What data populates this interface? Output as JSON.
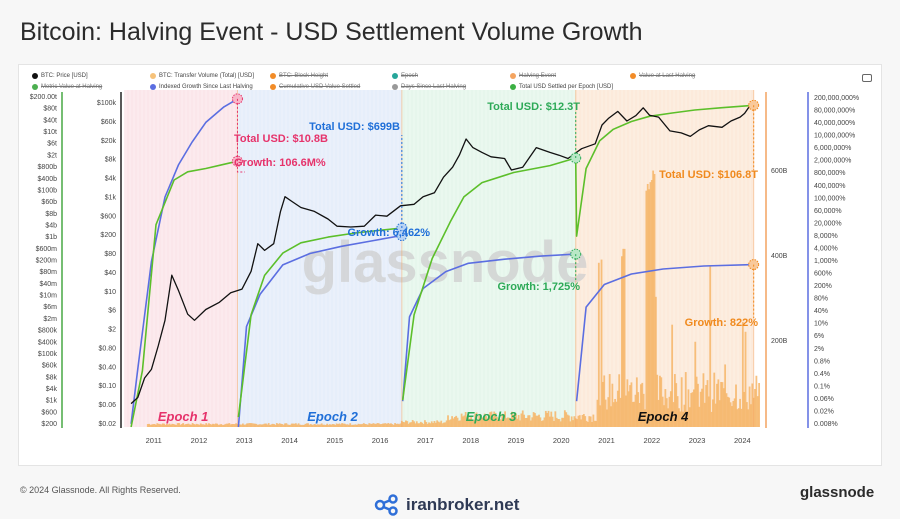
{
  "title": "Bitcoin: Halving Event - USD Settlement Volume Growth",
  "footer": {
    "copyright": "© 2024 Glassnode. All Rights Reserved.",
    "watermark": "iranbroker.net",
    "brand": "glassnode"
  },
  "legend": [
    {
      "label": "BTC: Price [USD]",
      "color": "#111111",
      "struck": false
    },
    {
      "label": "BTC: Transfer Volume (Total) [USD]",
      "color": "#f6c27a",
      "struck": false
    },
    {
      "label": "BTC: Block Height",
      "color": "#f28c28",
      "struck": true
    },
    {
      "label": "Epoch",
      "color": "#26a69a",
      "struck": true
    },
    {
      "label": "Halving Event",
      "color": "#f4a460",
      "struck": true
    },
    {
      "label": "Value at Last Halving",
      "color": "#f28c28",
      "struck": true
    },
    {
      "label": "Metric Value at Halving",
      "color": "#4caf50",
      "struck": true
    },
    {
      "label": "Indexed Growth Since Last Halving",
      "color": "#5b6ee1",
      "struck": false
    },
    {
      "label": "Cumulative USD Value Settled",
      "color": "#f28c28",
      "struck": true
    },
    {
      "label": "Days Since Last Halving",
      "color": "#999999",
      "struck": true
    },
    {
      "label": "Total USD Settled per Epoch [USD]",
      "color": "#3cb043",
      "struck": false
    }
  ],
  "colors": {
    "epoch1": "#f9dde3",
    "epoch2": "#dde8f8",
    "epoch3": "#def3e6",
    "epoch4": "#fbe3cf",
    "settled": "#5cbf2a",
    "growth": "#5b6ee1",
    "price": "#111111",
    "volume": "#f6b567",
    "pink": "#e6336b",
    "blue": "#1f6fd8",
    "green": "#2eaa58",
    "orange": "#f08a1e"
  },
  "chart_data": {
    "type": "line",
    "title": "Bitcoin: Halving Event - USD Settlement Volume Growth",
    "watermark": "glassnode",
    "x_ticks": [
      "2011",
      "2012",
      "2013",
      "2014",
      "2015",
      "2016",
      "2017",
      "2018",
      "2019",
      "2020",
      "2021",
      "2022",
      "2023",
      "2024"
    ],
    "price_axis_ticks": [
      "$100k",
      "$60k",
      "$20k",
      "$8k",
      "$4k",
      "$1k",
      "$600",
      "$200",
      "$80",
      "$40",
      "$10",
      "$6",
      "$2",
      "$0.80",
      "$0.40",
      "$0.10",
      "$0.06",
      "$0.02"
    ],
    "volume_axis_ticks": [
      "$200.00t",
      "$80t",
      "$40t",
      "$10t",
      "$6t",
      "$2t",
      "$800b",
      "$400b",
      "$100b",
      "$60b",
      "$8b",
      "$4b",
      "$1b",
      "$600m",
      "$200m",
      "$80m",
      "$40m",
      "$10m",
      "$6m",
      "$2m",
      "$800k",
      "$400k",
      "$100k",
      "$60k",
      "$8k",
      "$4k",
      "$1k",
      "$600",
      "$200"
    ],
    "bar_axis_ticks": [
      "600B",
      "400B",
      "200B"
    ],
    "growth_axis_ticks": [
      "200,000,000%",
      "80,000,000%",
      "40,000,000%",
      "10,000,000%",
      "6,000,000%",
      "2,000,000%",
      "800,000%",
      "400,000%",
      "100,000%",
      "60,000%",
      "20,000%",
      "8,000%",
      "4,000%",
      "1,000%",
      "600%",
      "200%",
      "80%",
      "40%",
      "10%",
      "6%",
      "2%",
      "0.8%",
      "0.4%",
      "0.1%",
      "0.06%",
      "0.02%",
      "0.008%"
    ],
    "epochs": [
      {
        "label": "Epoch 1",
        "start": 2010.4,
        "end": 2012.9,
        "total_usd": "Total USD: $10.8B",
        "growth": "Growth: 106.6M%"
      },
      {
        "label": "Epoch 2",
        "start": 2012.9,
        "end": 2016.53,
        "total_usd": "Total USD: $699B",
        "growth": "Growth: 6,462%"
      },
      {
        "label": "Epoch 3",
        "start": 2016.53,
        "end": 2020.37,
        "total_usd": "Total USD: $12.3T",
        "growth": "Growth: 1,725%"
      },
      {
        "label": "Epoch 4",
        "start": 2020.37,
        "end": 2024.3,
        "total_usd": "Total USD: $106.8T",
        "growth": "Growth: 822%"
      }
    ],
    "series": [
      {
        "name": "BTC: Price [USD]",
        "x": [
          2010.55,
          2010.7,
          2010.85,
          2011.0,
          2011.15,
          2011.3,
          2011.45,
          2011.6,
          2011.8,
          2011.95,
          2012.2,
          2012.5,
          2012.75,
          2013.0,
          2013.2,
          2013.35,
          2013.5,
          2013.7,
          2013.85,
          2013.95,
          2014.1,
          2014.3,
          2014.6,
          2014.9,
          2015.1,
          2015.4,
          2015.7,
          2015.95,
          2016.2,
          2016.5,
          2016.8,
          2017.0,
          2017.25,
          2017.45,
          2017.65,
          2017.8,
          2017.95,
          2018.1,
          2018.3,
          2018.5,
          2018.8,
          2018.95,
          2019.2,
          2019.5,
          2019.8,
          2020.0,
          2020.2,
          2020.5,
          2020.8,
          2020.95,
          2021.1,
          2021.3,
          2021.5,
          2021.7,
          2021.86,
          2022.0,
          2022.2,
          2022.45,
          2022.7,
          2022.9,
          2023.1,
          2023.3,
          2023.6,
          2023.8,
          2024.0,
          2024.1,
          2024.2,
          2024.3
        ],
        "y": [
          0.06,
          0.08,
          0.2,
          0.3,
          0.9,
          3,
          25,
          12,
          4,
          3,
          5,
          7,
          11,
          13,
          30,
          110,
          80,
          110,
          500,
          1000,
          800,
          600,
          500,
          350,
          250,
          240,
          250,
          420,
          400,
          650,
          700,
          1000,
          1200,
          2500,
          4000,
          7000,
          15000,
          10000,
          8000,
          6500,
          6000,
          3500,
          4000,
          10000,
          8000,
          7000,
          6000,
          9500,
          12000,
          29000,
          40000,
          55000,
          35000,
          45000,
          65000,
          46000,
          42000,
          22000,
          20000,
          17000,
          23000,
          28000,
          26000,
          35000,
          42000,
          50000,
          68000,
          64000
        ]
      },
      {
        "name": "Total USD Settled per Epoch [USD]",
        "x": [
          2010.55,
          2010.8,
          2011.1,
          2011.5,
          2011.8,
          2012.2,
          2012.6,
          2012.9,
          2012.92,
          2013.2,
          2013.5,
          2013.9,
          2014.3,
          2014.9,
          2015.5,
          2016.0,
          2016.53,
          2016.55,
          2016.8,
          2017.2,
          2017.6,
          2017.9,
          2018.3,
          2019.0,
          2019.8,
          2020.37,
          2020.39,
          2020.6,
          2020.9,
          2021.2,
          2021.6,
          2022.0,
          2022.5,
          2023.0,
          2023.6,
          2024.3
        ],
        "y": [
          0.2,
          2,
          800,
          5000,
          7000,
          8000,
          9500,
          10800,
          0.3,
          20,
          100,
          250,
          380,
          480,
          570,
          630,
          699,
          0.6,
          20,
          200,
          900,
          2500,
          4500,
          6800,
          9000,
          12300,
          500,
          8000,
          25000,
          40000,
          55000,
          68000,
          78000,
          88000,
          97000,
          106800
        ]
      },
      {
        "name": "Indexed Growth Since Last Halving",
        "x": [
          2010.55,
          2010.7,
          2011.0,
          2011.3,
          2011.6,
          2011.9,
          2012.2,
          2012.6,
          2012.9,
          2012.92,
          2013.1,
          2013.4,
          2013.9,
          2014.5,
          2015.2,
          2015.9,
          2016.53,
          2016.55,
          2016.7,
          2017.0,
          2017.5,
          2018.0,
          2018.8,
          2019.6,
          2020.37,
          2020.39,
          2020.6,
          2021.0,
          2021.6,
          2022.3,
          2023.2,
          2024.3
        ],
        "y": [
          0.01,
          0.5,
          1000,
          100000,
          1000000,
          5000000,
          20000000,
          60000000,
          106600000,
          0.008,
          10,
          100,
          800,
          1800,
          3000,
          4500,
          6462,
          0.05,
          20,
          150,
          500,
          900,
          1200,
          1500,
          1725,
          0.05,
          40,
          200,
          420,
          600,
          740,
          822
        ]
      }
    ],
    "volume_bars": "daily transfer volume [USD], rising through Epoch 4 with peaks near 500B in 2021"
  }
}
